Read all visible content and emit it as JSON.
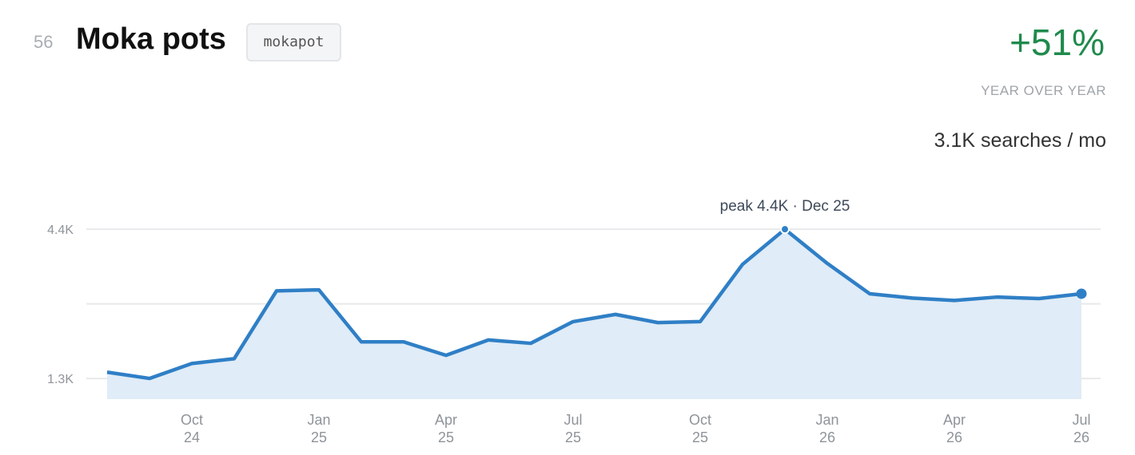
{
  "rank": "56",
  "title": "Moka pots",
  "tag": "mokapot",
  "change": "+51%",
  "change_label": "YEAR OVER YEAR",
  "volume": "3.1K searches / mo",
  "chart_data": {
    "type": "line",
    "annotation": "peak 4.4K · Dec 25",
    "categories": [
      null,
      null,
      "Oct 24",
      null,
      null,
      "Jan 25",
      null,
      null,
      "Apr 25",
      null,
      null,
      "Jul 25",
      null,
      null,
      "Oct 25",
      null,
      null,
      "Jan 26",
      null,
      null,
      "Apr 26",
      null,
      null,
      "Jul 26"
    ],
    "series": [
      {
        "color": "#2f7fc6",
        "fill": "#e0ecf7",
        "values": [
          1430,
          1300,
          1610,
          1710,
          3120,
          3140,
          2060,
          2060,
          1780,
          2100,
          2030,
          2480,
          2630,
          2460,
          2480,
          3670,
          4400,
          3690,
          3060,
          2970,
          2920,
          2990,
          2960,
          3060
        ]
      }
    ],
    "ylim": [
      870,
      5000
    ],
    "yticks": [
      {
        "value": 1300,
        "label": "1.3K"
      },
      {
        "value": 2850,
        "label": null
      },
      {
        "value": 4400,
        "label": "4.4K"
      }
    ],
    "grid": true
  }
}
